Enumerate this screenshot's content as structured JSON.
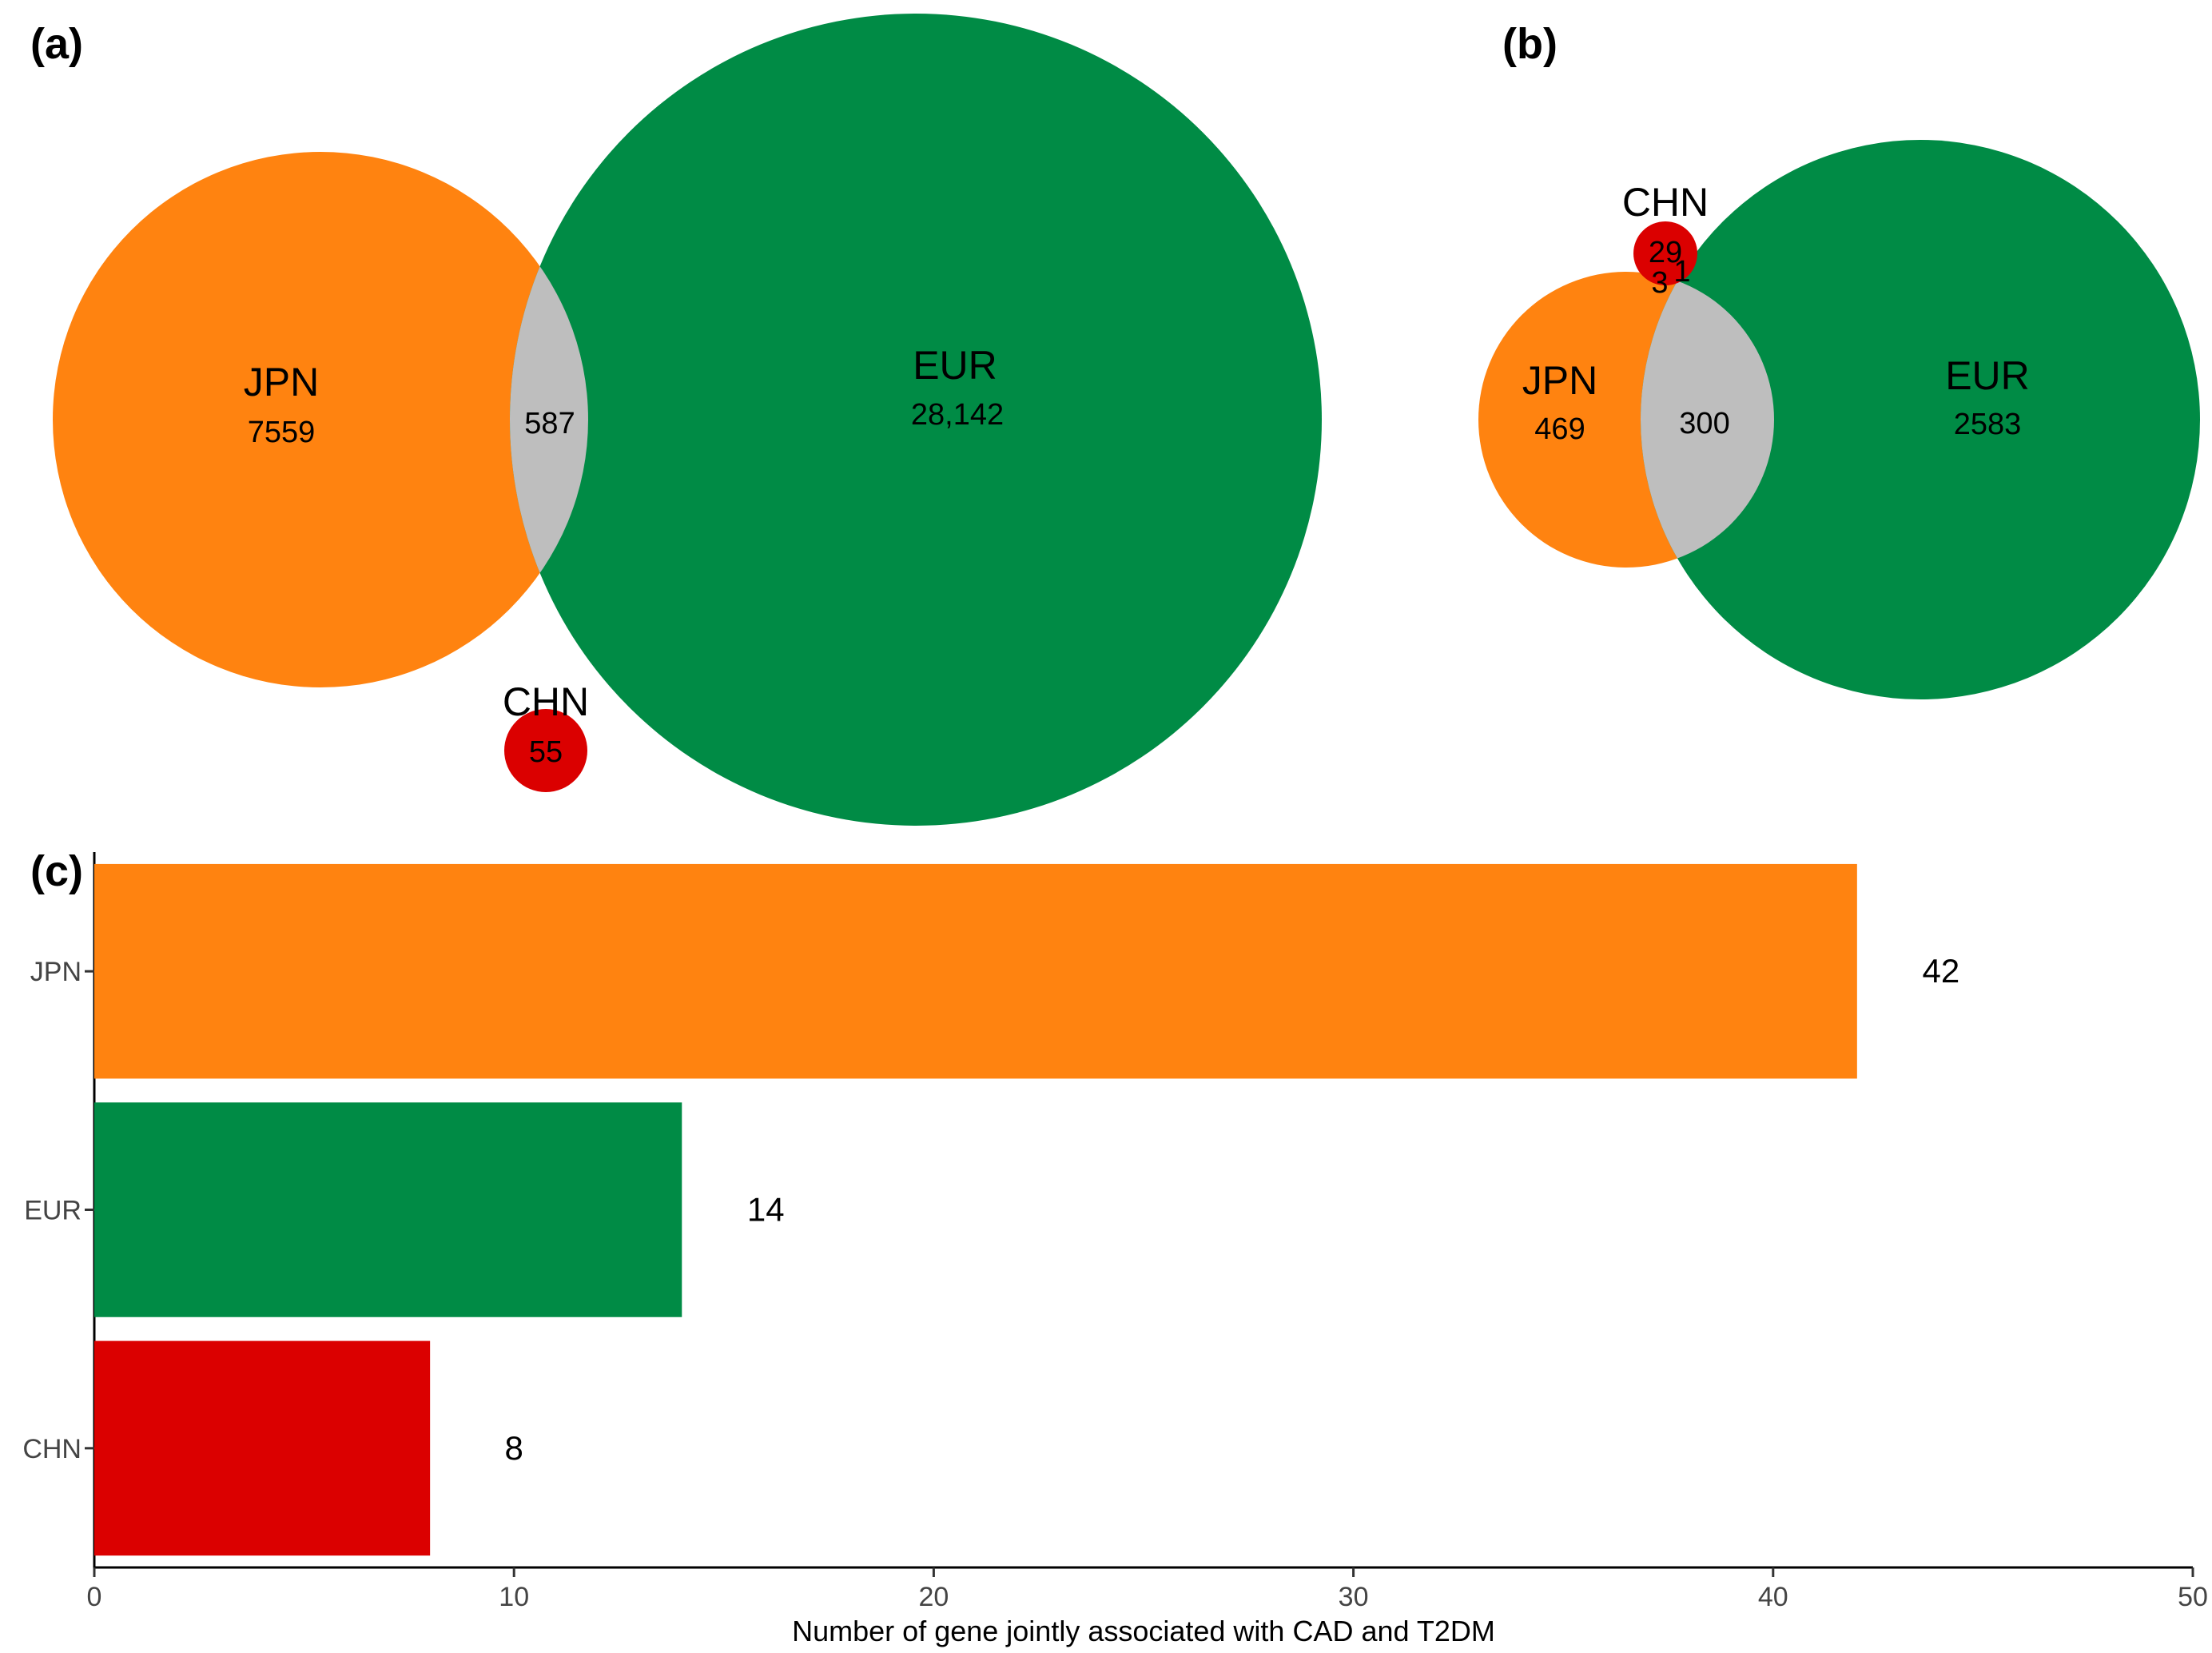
{
  "panels": {
    "a": {
      "label": "(a)",
      "type": "venn",
      "sets": [
        {
          "name": "JPN",
          "count": "7559",
          "color": "#FF8310"
        },
        {
          "name": "EUR",
          "count": "28,142",
          "color": "#008B45"
        },
        {
          "name": "CHN",
          "count": "55",
          "color": "#DB0000"
        }
      ],
      "overlaps": [
        {
          "sets": [
            "JPN",
            "EUR"
          ],
          "count": "587",
          "color": "#BEBEBE"
        }
      ]
    },
    "b": {
      "label": "(b)",
      "type": "venn",
      "sets": [
        {
          "name": "JPN",
          "count": "469",
          "color": "#FF8310"
        },
        {
          "name": "EUR",
          "count": "2583",
          "color": "#008B45"
        },
        {
          "name": "CHN",
          "count": "29",
          "color": "#DB0000"
        }
      ],
      "overlaps": [
        {
          "sets": [
            "JPN",
            "EUR"
          ],
          "count": "300",
          "color": "#BEBEBE"
        },
        {
          "sets": [
            "CHN",
            "JPN"
          ],
          "count": "3",
          "color": "#BEBEBE"
        },
        {
          "sets": [
            "CHN",
            "EUR"
          ],
          "count": "1",
          "color": "#BEBEBE"
        }
      ]
    },
    "c": {
      "label": "(c)"
    }
  },
  "chart_data": {
    "type": "bar",
    "orientation": "horizontal",
    "categories": [
      "JPN",
      "EUR",
      "CHN"
    ],
    "values": [
      42,
      14,
      8
    ],
    "value_labels": [
      "42",
      "14",
      "8"
    ],
    "colors": [
      "#FF8310",
      "#008B45",
      "#DB0000"
    ],
    "xlabel": "Number of gene jointly associated with CAD and T2DM",
    "ylabel": "",
    "xlim": [
      0,
      50
    ],
    "xticks": [
      0,
      10,
      20,
      30,
      40,
      50
    ],
    "grid": false
  }
}
